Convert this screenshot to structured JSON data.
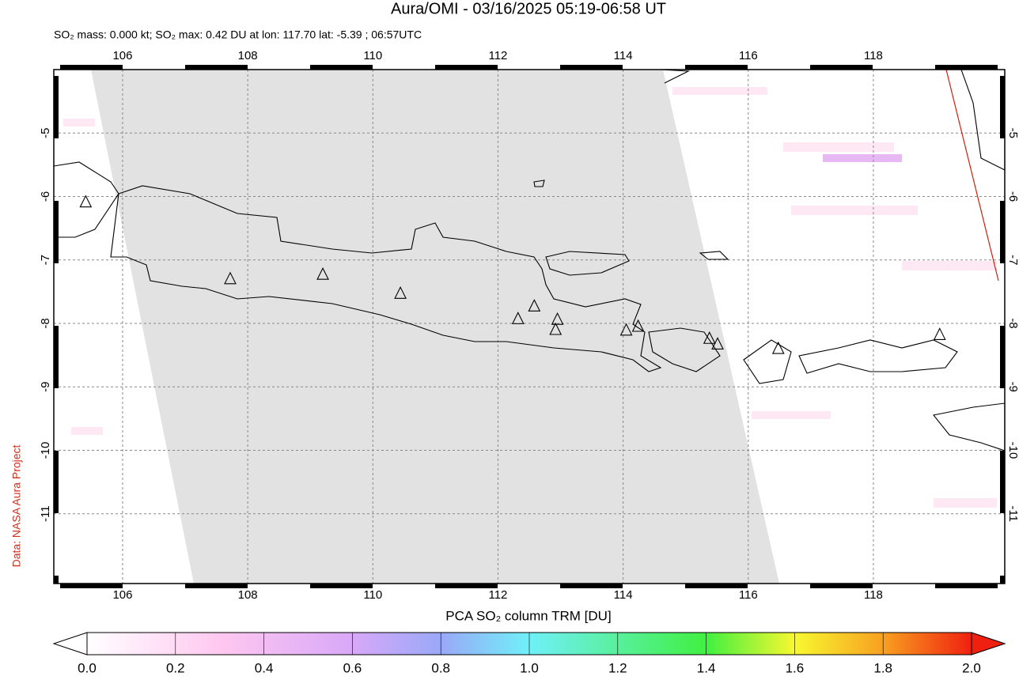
{
  "chart_data": {
    "type": "map",
    "title": "Aura/OMI - 03/16/2025 05:19-06:58 UT",
    "subtitle": "SO₂ mass: 0.000 kt; SO₂ max: 0.42 DU at lon: 117.70 lat: -5.39 ; 06:57UTC",
    "credit": "Data: NASA Aura Project",
    "xlim": [
      104.9,
      120.1
    ],
    "ylim": [
      -12.1,
      -4.0
    ],
    "xticks": [
      106,
      108,
      110,
      112,
      114,
      116,
      118
    ],
    "yticks": [
      -5,
      -6,
      -7,
      -8,
      -9,
      -10,
      -11
    ],
    "grid": true,
    "volcanoes": {
      "lon": [
        105.41,
        107.72,
        109.2,
        110.44,
        112.32,
        112.58,
        112.95,
        112.92,
        114.05,
        114.24,
        115.38,
        115.51,
        116.48,
        119.06
      ],
      "lat": [
        -6.09,
        -7.3,
        -7.23,
        -7.53,
        -7.93,
        -7.73,
        -7.94,
        -8.1,
        -8.11,
        -8.05,
        -8.24,
        -8.33,
        -8.4,
        -8.18
      ]
    },
    "colorbar": {
      "label": "PCA SO₂ column TRM [DU]",
      "lim": [
        0,
        2
      ],
      "ticks": [
        {
          "value": 0,
          "label": "0.0"
        },
        {
          "value": 0.2,
          "label": "0.2"
        },
        {
          "value": 0.4,
          "label": "0.4"
        },
        {
          "value": 0.6,
          "label": "0.6"
        },
        {
          "value": 0.8,
          "label": "0.8"
        },
        {
          "value": 1,
          "label": "1.0"
        },
        {
          "value": 1.2,
          "label": "1.2"
        },
        {
          "value": 1.4,
          "label": "1.4"
        },
        {
          "value": 1.6,
          "label": "1.6"
        },
        {
          "value": 1.8,
          "label": "1.8"
        },
        {
          "value": 2,
          "label": "2.0"
        }
      ]
    }
  }
}
